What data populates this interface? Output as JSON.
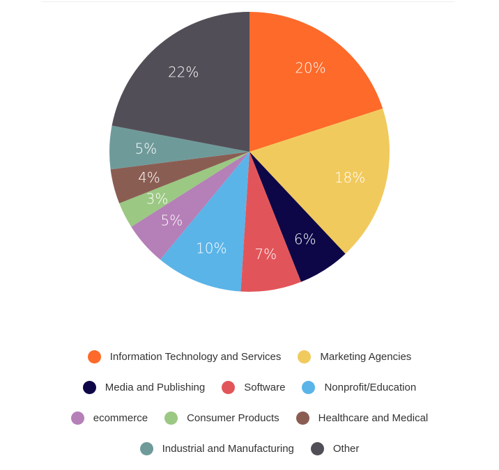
{
  "chart_data": {
    "type": "pie",
    "slices": [
      {
        "label": "Information Technology and Services",
        "value": 20,
        "display": "20%",
        "color": "#FD6A2A"
      },
      {
        "label": "Marketing Agencies",
        "value": 18,
        "display": "18%",
        "color": "#F1CA5E"
      },
      {
        "label": "Media and Publishing",
        "value": 6,
        "display": "6%",
        "color": "#0D0747"
      },
      {
        "label": "Software",
        "value": 7,
        "display": "7%",
        "color": "#E1555A"
      },
      {
        "label": "Nonprofit/Education",
        "value": 10,
        "display": "10%",
        "color": "#5AB4E8"
      },
      {
        "label": "ecommerce",
        "value": 5,
        "display": "5%",
        "color": "#B57FB7"
      },
      {
        "label": "Consumer Products",
        "value": 3,
        "display": "3%",
        "color": "#9BC883"
      },
      {
        "label": "Healthcare and Medical",
        "value": 4,
        "display": "4%",
        "color": "#8A5D53"
      },
      {
        "label": "Industrial and Manufacturing",
        "value": 5,
        "display": "5%",
        "color": "#6F9A9A"
      },
      {
        "label": "Other",
        "value": 22,
        "display": "22%",
        "color": "#524E57"
      }
    ],
    "legend": {
      "placement": "bottom",
      "rows": [
        [
          0,
          1
        ],
        [
          2,
          3,
          4
        ],
        [
          5,
          6,
          7
        ],
        [
          8,
          9
        ]
      ]
    }
  }
}
